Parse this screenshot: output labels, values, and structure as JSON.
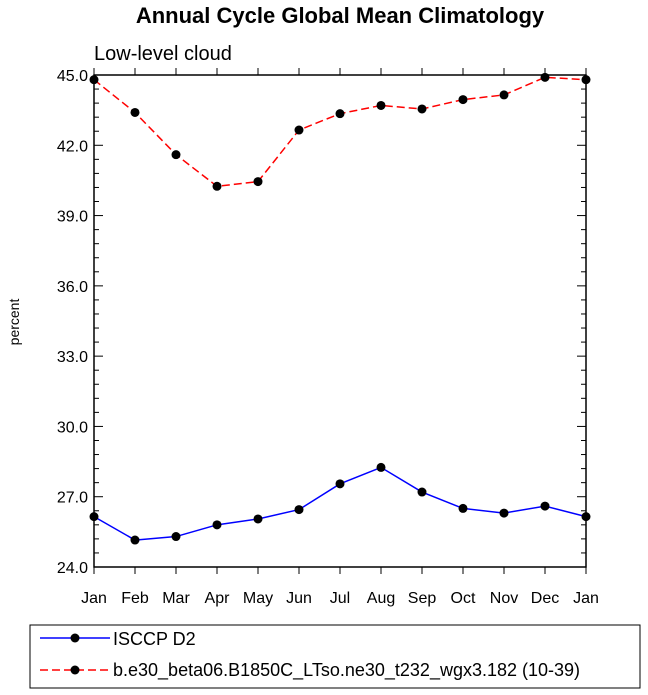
{
  "chart_data": {
    "type": "line",
    "title": "Annual Cycle Global Mean Climatology",
    "subtitle": "Low-level cloud",
    "xlabel": "",
    "ylabel": "percent",
    "categories": [
      "Jan",
      "Feb",
      "Mar",
      "Apr",
      "May",
      "Jun",
      "Jul",
      "Aug",
      "Sep",
      "Oct",
      "Nov",
      "Dec",
      "Jan"
    ],
    "ylim": [
      24.0,
      45.0
    ],
    "y_ticks": [
      "24.0",
      "27.0",
      "30.0",
      "33.0",
      "36.0",
      "39.0",
      "42.0",
      "45.0"
    ],
    "grid": false,
    "legend_position": "bottom",
    "series": [
      {
        "name": "ISCCP D2",
        "color": "#0000ff",
        "dash": "solid",
        "marker": "filled-circle",
        "values": [
          26.15,
          25.15,
          25.3,
          25.8,
          26.05,
          26.45,
          27.55,
          28.25,
          27.2,
          26.5,
          26.3,
          26.6,
          26.15
        ]
      },
      {
        "name": "b.e30_beta06.B1850C_LTso.ne30_t232_wgx3.182 (10-39)",
        "color": "#ff0000",
        "dash": "dashed",
        "marker": "filled-circle",
        "values": [
          44.8,
          43.4,
          41.6,
          40.25,
          40.45,
          42.65,
          43.35,
          43.7,
          43.55,
          43.95,
          44.15,
          44.9,
          44.8
        ]
      }
    ]
  }
}
